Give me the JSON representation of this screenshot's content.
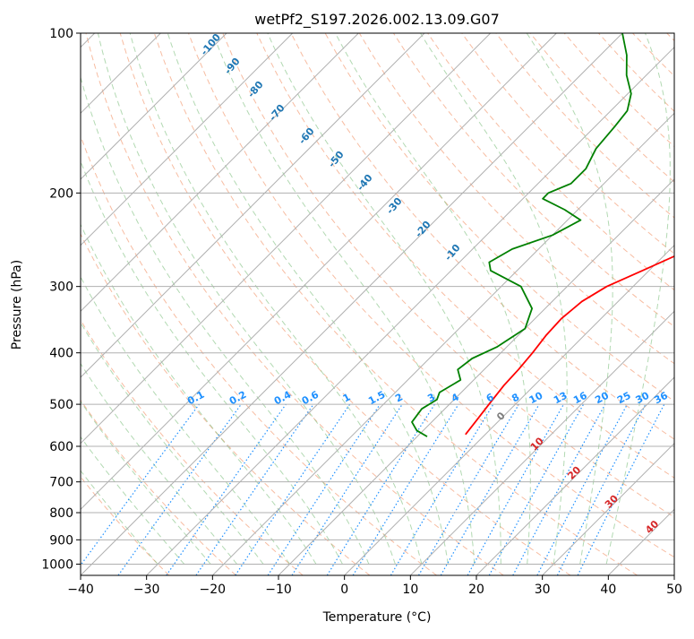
{
  "chart_data": {
    "type": "line",
    "chart_kind": "skew-T log-P diagram",
    "title": "wetPf2_S197.2026.002.13.09.G07",
    "xlabel": "Temperature (°C)",
    "ylabel": "Pressure (hPa)",
    "xlim": [
      -40,
      50
    ],
    "ylim": [
      1050,
      100
    ],
    "y_scale": "log",
    "grid": true,
    "x_ticks": [
      "-40",
      "-30",
      "-20",
      "-10",
      "0",
      "10",
      "20",
      "30",
      "40",
      "50"
    ],
    "y_ticks": [
      "100",
      "200",
      "300",
      "400",
      "500",
      "600",
      "700",
      "800",
      "900",
      "1000"
    ],
    "series": [
      {
        "color": "#ff0000",
        "points": [
          [
            570,
            -3
          ],
          [
            540,
            -3.4
          ],
          [
            500,
            -4
          ],
          [
            460,
            -4.6
          ],
          [
            430,
            -4.8
          ],
          [
            400,
            -5.2
          ],
          [
            370,
            -5.8
          ],
          [
            345,
            -6
          ],
          [
            320,
            -5.5
          ],
          [
            300,
            -4
          ],
          [
            280,
            -1
          ],
          [
            260,
            2.2
          ],
          [
            240,
            5
          ],
          [
            210,
            9
          ],
          [
            190,
            11.5
          ],
          [
            170,
            14.5
          ],
          [
            150,
            18
          ],
          [
            130,
            21.5
          ],
          [
            115,
            24
          ],
          [
            100,
            26.5
          ]
        ]
      },
      {
        "color": "#008000",
        "points": [
          [
            575,
            -8.5
          ],
          [
            560,
            -11
          ],
          [
            540,
            -13
          ],
          [
            510,
            -13.5
          ],
          [
            490,
            -12.6
          ],
          [
            475,
            -13.3
          ],
          [
            450,
            -12
          ],
          [
            430,
            -14
          ],
          [
            410,
            -13.5
          ],
          [
            390,
            -11.5
          ],
          [
            360,
            -10
          ],
          [
            330,
            -12
          ],
          [
            300,
            -17
          ],
          [
            280,
            -24
          ],
          [
            270,
            -25.5
          ],
          [
            255,
            -24
          ],
          [
            240,
            -20
          ],
          [
            225,
            -18
          ],
          [
            215,
            -22
          ],
          [
            205,
            -27
          ],
          [
            200,
            -27
          ],
          [
            192,
            -25
          ],
          [
            180,
            -25
          ],
          [
            165,
            -26.5
          ],
          [
            150,
            -27
          ],
          [
            140,
            -27.5
          ],
          [
            130,
            -29.5
          ],
          [
            120,
            -33
          ],
          [
            110,
            -36
          ],
          [
            100,
            -40
          ]
        ]
      }
    ],
    "isotherm_labels": [
      "0",
      "10",
      "20",
      "30",
      "40"
    ],
    "isotherm_label_color": "#d62728",
    "freezing_level_label": "0",
    "freezing_level_color": "#808080",
    "mixing_ratio_labels": [
      "0.1",
      "0.2",
      "0.4",
      "0.6",
      "1",
      "1.5",
      "2",
      "3",
      "4",
      "6",
      "8",
      "10",
      "13",
      "16",
      "20",
      "25",
      "30",
      "36"
    ],
    "mixing_ratio_values": [
      0.1,
      0.2,
      0.4,
      0.6,
      1,
      1.5,
      2,
      3,
      4,
      6,
      8,
      10,
      13,
      16,
      20,
      25,
      30,
      36
    ],
    "mixing_ratio_color": "#1e90ff",
    "moist_adiabat_labels": [
      "-100",
      "-90",
      "-80",
      "-70",
      "-60",
      "-50",
      "-40",
      "-30",
      "-20",
      "-10"
    ],
    "moist_adiabat_label_color": "#1f77b4"
  }
}
